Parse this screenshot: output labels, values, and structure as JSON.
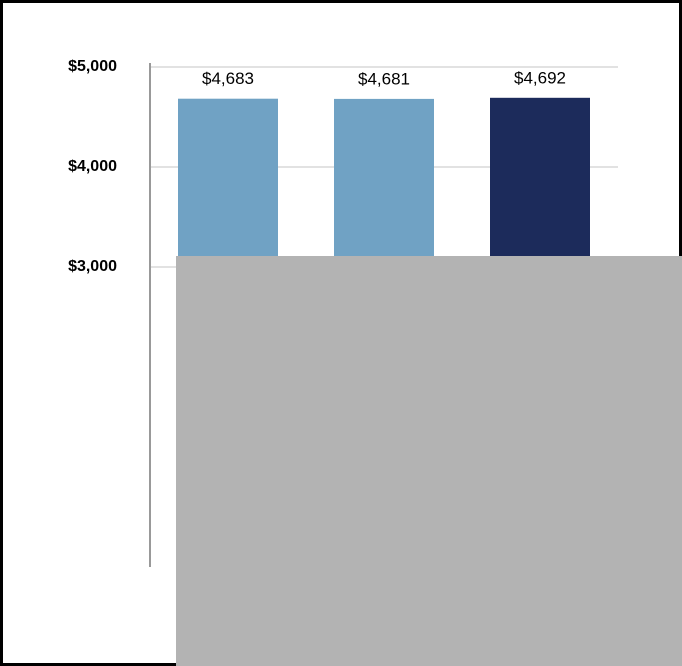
{
  "chart_data": {
    "type": "bar",
    "categories": [
      null,
      null,
      null
    ],
    "values": [
      4683,
      4681,
      4692
    ],
    "value_labels": [
      "$4,683",
      "$4,681",
      "$4,692"
    ],
    "colors": [
      "#70a2c4",
      "#70a2c4",
      "#1c2b5b"
    ],
    "ylim": [
      0,
      5000
    ],
    "yticks": [
      {
        "value": 3000,
        "label": "$3,000"
      },
      {
        "value": 4000,
        "label": "$4,000"
      },
      {
        "value": 5000,
        "label": "$5,000"
      }
    ],
    "grid": true
  }
}
